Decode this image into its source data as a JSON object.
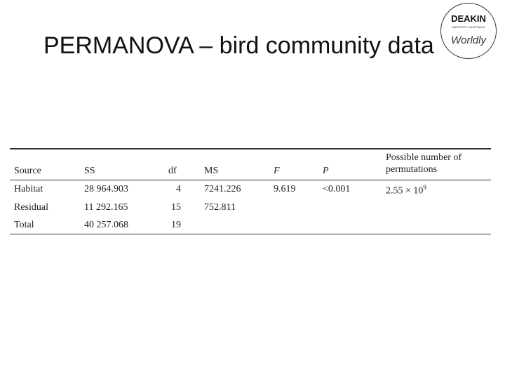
{
  "header": {
    "title": "PERMANOVA – bird community data",
    "logo": {
      "name": "DEAKIN",
      "subtitle": "UNIVERSITY AUSTRALIA",
      "tagline": "Worldly"
    }
  },
  "table": {
    "columns": [
      "Source",
      "SS",
      "df",
      "MS",
      "F",
      "P",
      "Possible number of permutations"
    ],
    "rows": [
      {
        "source": "Habitat",
        "ss": "28 964.903",
        "df": "4",
        "ms": "7241.226",
        "f": "9.619",
        "p": "<0.001",
        "perms": {
          "base": "2.55 × 10",
          "exponent": "9"
        }
      },
      {
        "source": "Residual",
        "ss": "11 292.165",
        "df": "15",
        "ms": "752.811"
      },
      {
        "source": "Total",
        "ss": "40 257.068",
        "df": "19"
      }
    ]
  }
}
